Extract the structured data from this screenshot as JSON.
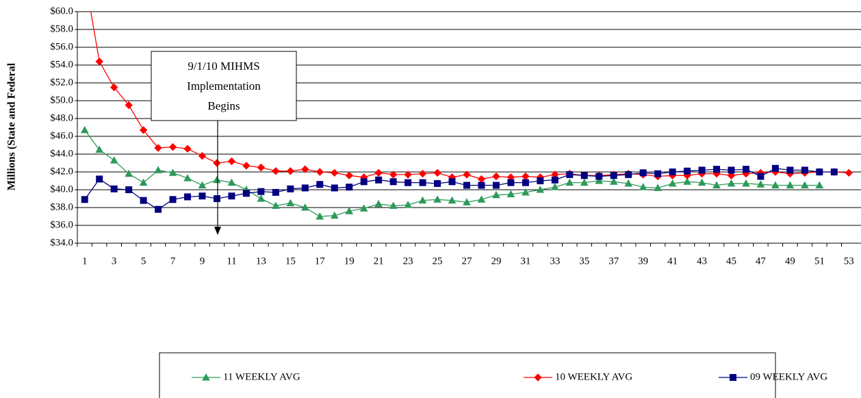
{
  "chart_data": {
    "type": "line",
    "ylabel": "Millions (State and Federal",
    "annotation": [
      "9/1/10 MIHMS",
      "Implementation",
      "Begins"
    ],
    "x": [
      1,
      2,
      3,
      4,
      5,
      6,
      7,
      8,
      9,
      10,
      11,
      12,
      13,
      14,
      15,
      16,
      17,
      18,
      19,
      20,
      21,
      22,
      23,
      24,
      25,
      26,
      27,
      28,
      29,
      30,
      31,
      32,
      33,
      34,
      35,
      36,
      37,
      38,
      39,
      40,
      41,
      42,
      43,
      44,
      45,
      46,
      47,
      48,
      49,
      50,
      51,
      52,
      53
    ],
    "xlim": [
      0.5,
      53.5
    ],
    "xticks": [
      1,
      3,
      5,
      7,
      9,
      11,
      13,
      15,
      17,
      19,
      21,
      23,
      25,
      27,
      29,
      31,
      33,
      35,
      37,
      39,
      41,
      43,
      45,
      47,
      49,
      51,
      53
    ],
    "ylim": [
      34,
      60
    ],
    "yticks": [
      {
        "value": 34,
        "label": "$34.0"
      },
      {
        "value": 36,
        "label": "$36.0"
      },
      {
        "value": 38,
        "label": "$38.0"
      },
      {
        "value": 40,
        "label": "$40.0"
      },
      {
        "value": 42,
        "label": "$42.0"
      },
      {
        "value": 44,
        "label": "$44.0"
      },
      {
        "value": 46,
        "label": "$46.0"
      },
      {
        "value": 48,
        "label": "$48.0"
      },
      {
        "value": 50,
        "label": "$50.0"
      },
      {
        "value": 52,
        "label": "$52.0"
      },
      {
        "value": 54,
        "label": "$54.0"
      },
      {
        "value": 56,
        "label": "$56.0"
      },
      {
        "value": 58,
        "label": "$58.0"
      },
      {
        "value": 60,
        "label": "$60.0"
      }
    ],
    "grid": true,
    "legend": "bottom",
    "series": [
      {
        "name": "11 WEEKLY AVG",
        "color": "#2e9a5a",
        "marker": "triangle",
        "values": [
          46.7,
          44.5,
          43.3,
          41.8,
          40.8,
          42.2,
          41.9,
          41.3,
          40.5,
          41.1,
          40.8,
          40.0,
          39.0,
          38.2,
          38.5,
          38.0,
          37.0,
          37.1,
          37.6,
          37.9,
          38.4,
          38.2,
          38.3,
          38.8,
          38.9,
          38.8,
          38.6,
          38.9,
          39.4,
          39.5,
          39.7,
          40.0,
          40.3,
          40.8,
          40.8,
          41.0,
          40.9,
          40.7,
          40.3,
          40.2,
          40.7,
          40.9,
          40.8,
          40.5,
          40.7,
          40.7,
          40.6,
          40.5,
          40.5,
          40.5,
          40.5,
          null,
          null
        ]
      },
      {
        "name": "10 WEEKLY AVG",
        "color": "#ff0000",
        "marker": "diamond",
        "values": [
          64.0,
          54.4,
          51.5,
          49.5,
          46.7,
          44.7,
          44.8,
          44.6,
          43.8,
          43.0,
          43.2,
          42.7,
          42.5,
          42.1,
          42.1,
          42.3,
          42.0,
          41.9,
          41.6,
          41.4,
          41.9,
          41.7,
          41.7,
          41.8,
          41.9,
          41.4,
          41.7,
          41.2,
          41.5,
          41.4,
          41.5,
          41.4,
          41.7,
          41.8,
          41.6,
          41.6,
          41.7,
          41.8,
          41.7,
          41.5,
          41.6,
          41.6,
          41.8,
          41.8,
          41.6,
          41.8,
          41.9,
          42.0,
          41.8,
          41.9,
          42.0,
          42.0,
          41.9
        ]
      },
      {
        "name": "09 WEEKLY AVG",
        "color": "#000080",
        "marker": "square",
        "values": [
          38.9,
          41.2,
          40.1,
          40.0,
          38.8,
          37.8,
          38.9,
          39.2,
          39.3,
          39.0,
          39.3,
          39.6,
          39.8,
          39.7,
          40.1,
          40.2,
          40.6,
          40.2,
          40.3,
          40.9,
          41.1,
          40.9,
          40.8,
          40.8,
          40.7,
          40.9,
          40.5,
          40.5,
          40.5,
          40.8,
          40.8,
          41.0,
          41.1,
          41.7,
          41.6,
          41.5,
          41.6,
          41.7,
          41.9,
          41.8,
          42.0,
          42.1,
          42.2,
          42.3,
          42.2,
          42.3,
          41.5,
          42.4,
          42.2,
          42.2,
          42.0,
          42.0,
          null
        ]
      }
    ]
  }
}
